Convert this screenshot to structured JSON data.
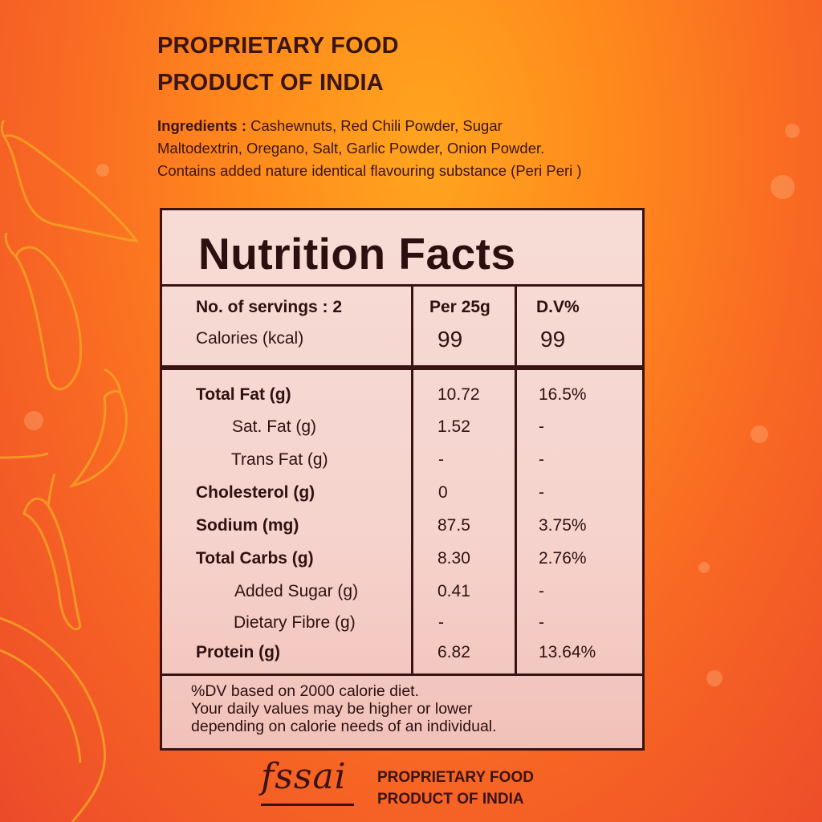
{
  "header": {
    "line1": "PROPRIETARY FOOD",
    "line2": "PRODUCT OF INDIA"
  },
  "ingredients": {
    "label": "Ingredients :",
    "line1": " Cashewnuts, Red Chili Powder, Sugar",
    "line2": "Maltodextrin, Oregano, Salt, Garlic Powder, Onion Powder.",
    "line3": "Contains added nature identical flavouring substance (Peri Peri )"
  },
  "nutrition": {
    "title": "Nutrition Facts",
    "servings_label": "No. of servings : 2",
    "per_label": "Per 25g",
    "dv_label": "D.V%",
    "calories_label": "Calories (kcal)",
    "calories_value": "99",
    "calories_dv": "99",
    "rows": [
      {
        "name": "Total Fat (g)",
        "value": "10.72",
        "dv": "16.5%"
      },
      {
        "name": "Sat. Fat (g)",
        "value": "1.52",
        "dv": "-"
      },
      {
        "name": "Trans Fat (g)",
        "value": "-",
        "dv": "-"
      },
      {
        "name": "Cholesterol (g)",
        "value": "0",
        "dv": "-"
      },
      {
        "name": "Sodium (mg)",
        "value": "87.5",
        "dv": "3.75%"
      },
      {
        "name": "Total Carbs (g)",
        "value": "8.30",
        "dv": "2.76%"
      },
      {
        "name": "Added Sugar (g)",
        "value": "0.41",
        "dv": "-"
      },
      {
        "name": "Dietary Fibre (g)",
        "value": "-",
        "dv": "-"
      },
      {
        "name": "Protein (g)",
        "value": "6.82",
        "dv": "13.64%"
      }
    ],
    "footnote": {
      "line1": "%DV based on 2000 calorie diet.",
      "line2": "Your daily values may be higher or lower",
      "line3": "depending on calorie needs of an individual."
    }
  },
  "footer": {
    "logo": "fssai",
    "line1": "PROPRIETARY FOOD",
    "line2": "PRODUCT OF INDIA"
  }
}
